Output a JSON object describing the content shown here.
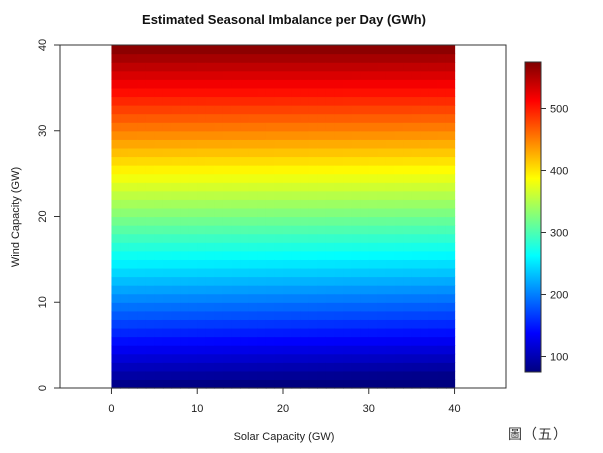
{
  "caption": "圖（五）",
  "chart_data": {
    "type": "heatmap",
    "title": "Estimated Seasonal Imbalance per Day (GWh)",
    "xlabel": "Solar Capacity (GW)",
    "ylabel": "Wind Capacity (GW)",
    "xlim": [
      -6,
      46
    ],
    "ylim": [
      0,
      40
    ],
    "x_range": [
      0,
      40
    ],
    "y_range": [
      0,
      40
    ],
    "x_ticks": [
      0,
      10,
      20,
      30,
      40
    ],
    "y_ticks": [
      0,
      10,
      20,
      30,
      40
    ],
    "grid": false,
    "value_model": {
      "description_of_surface": "value at (solar,wind)",
      "at_solar0_wind0": 75,
      "at_solar40_wind0": 60,
      "at_solar0_wind40": 575,
      "at_solar40_wind40": 575
    },
    "colorscale": {
      "name": "jet",
      "min": 75,
      "max": 575,
      "ticks": [
        100,
        200,
        300,
        400,
        500
      ],
      "colors": [
        "#00007f",
        "#0000ff",
        "#007fff",
        "#00ffff",
        "#7fff7f",
        "#ffff00",
        "#ff7f00",
        "#ff0000",
        "#7f0000"
      ]
    },
    "legend": "right"
  }
}
